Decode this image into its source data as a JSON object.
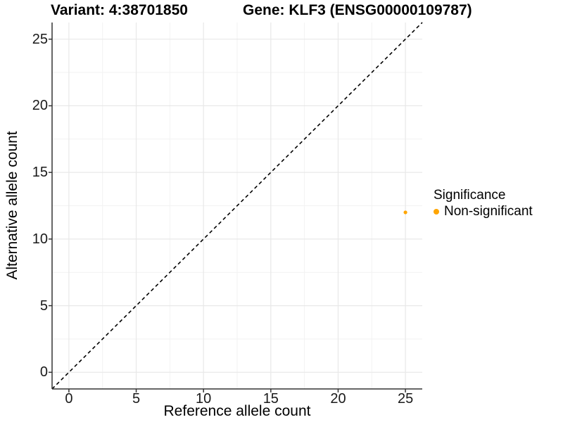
{
  "titles": {
    "left": "Variant: 4:38701850",
    "right": "Gene: KLF3 (ENSG00000109787)"
  },
  "axes": {
    "x_title": "Reference allele count",
    "y_title": "Alternative allele count"
  },
  "legend": {
    "title": "Significance",
    "items": [
      {
        "label": "Non-significant",
        "color": "#FFA500"
      }
    ]
  },
  "colors": {
    "point": "#FFA500",
    "axis": "#333333",
    "tick": "#333333",
    "grid_major": "#E8E8E8",
    "grid_minor": "#F2F2F2",
    "diagonal": "#000000"
  },
  "chart_data": {
    "type": "scatter",
    "title": "Variant: 4:38701850    Gene: KLF3 (ENSG00000109787)",
    "xlabel": "Reference allele count",
    "ylabel": "Alternative allele count",
    "xlim": [
      -1.25,
      26.25
    ],
    "ylim": [
      -1.25,
      26.25
    ],
    "x_ticks": [
      0,
      5,
      10,
      15,
      20,
      25
    ],
    "y_ticks": [
      0,
      5,
      10,
      15,
      20,
      25
    ],
    "grid": {
      "major": true,
      "minor": true
    },
    "reference_line": {
      "kind": "identity y=x",
      "style": "dashed",
      "from": [
        -1.25,
        -1.25
      ],
      "to": [
        26.25,
        26.25
      ]
    },
    "series": [
      {
        "name": "Non-significant",
        "color": "#FFA500",
        "points": [
          {
            "x": 25,
            "y": 12
          }
        ]
      }
    ],
    "legend_position": "right",
    "legend_title": "Significance"
  }
}
